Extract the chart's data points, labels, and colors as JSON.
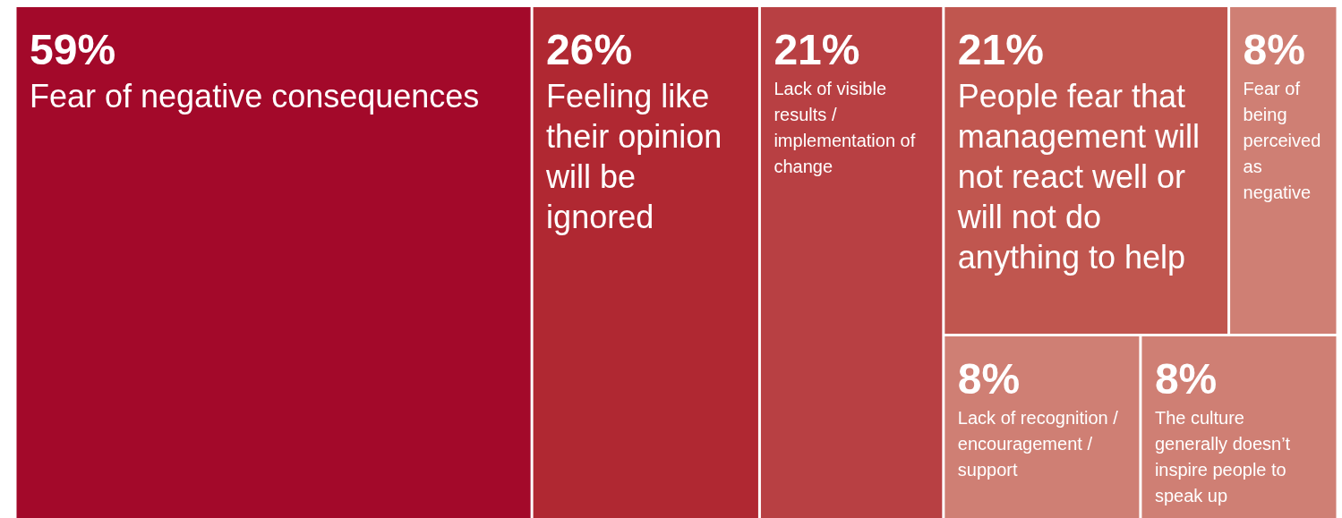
{
  "chart_data": {
    "type": "other",
    "categories": [
      "Fear of negative consequences",
      "Feeling like their opinion will be ignored",
      "Lack of visible results / implementation of change",
      "People fear that management will not react well or will not do anything to help",
      "Fear of being perceived as negative",
      "Lack of recognition / encouragement / support",
      "The culture generally doesn’t inspire people to speak up"
    ],
    "values": [
      59,
      26,
      21,
      21,
      8,
      8,
      8
    ],
    "value_labels": [
      "59%",
      "26%",
      "21%",
      "21%",
      "8%",
      "8%",
      "8%"
    ],
    "colors": [
      "#a3092a",
      "#b02832",
      "#b84043",
      "#c0564f",
      "#cf7f74",
      "#cf7f74",
      "#cf7f74"
    ]
  }
}
